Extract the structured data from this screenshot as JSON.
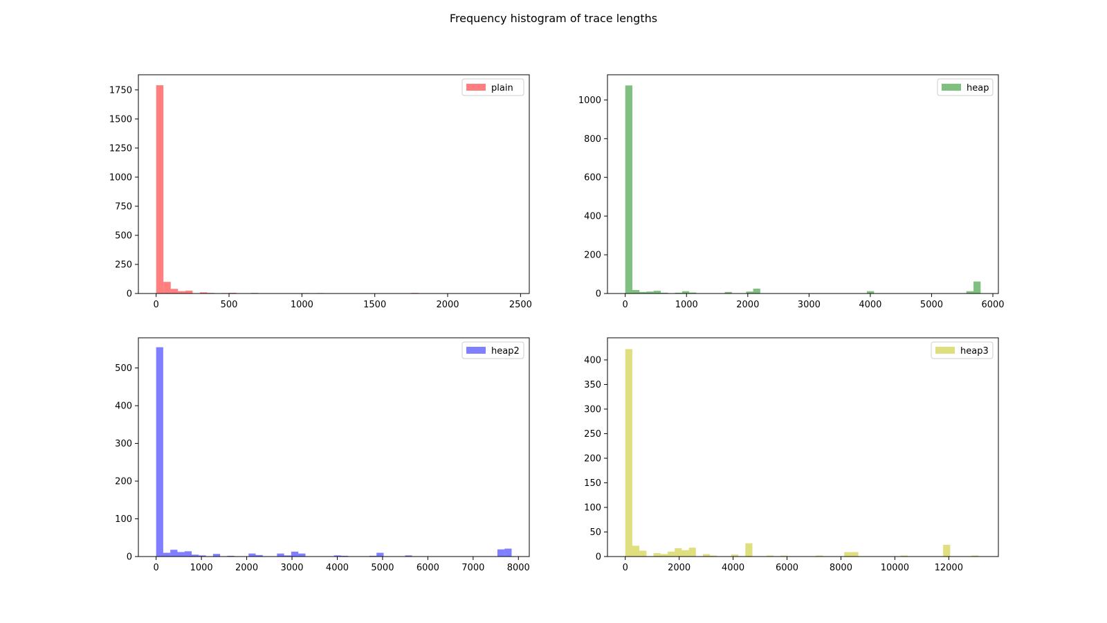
{
  "figure": {
    "title": "Frequency histogram of trace lengths"
  },
  "chart_data": [
    {
      "type": "bar",
      "subtype": "histogram",
      "legend": "plain",
      "legend_position": "top-right",
      "color": "#ff0000",
      "alpha": 0.5,
      "xlim": [
        -122,
        2560
      ],
      "ylim": [
        0,
        1880
      ],
      "xticks": [
        0,
        500,
        1000,
        1500,
        2000,
        2500
      ],
      "yticks": [
        0,
        250,
        500,
        750,
        1000,
        1250,
        1500,
        1750
      ],
      "bin_width": 50,
      "bins": [
        {
          "x": 0,
          "y": 1790
        },
        {
          "x": 50,
          "y": 100
        },
        {
          "x": 100,
          "y": 40
        },
        {
          "x": 150,
          "y": 20
        },
        {
          "x": 200,
          "y": 25
        },
        {
          "x": 300,
          "y": 10
        },
        {
          "x": 350,
          "y": 5
        },
        {
          "x": 450,
          "y": 4
        },
        {
          "x": 500,
          "y": 6
        },
        {
          "x": 650,
          "y": 5
        },
        {
          "x": 1000,
          "y": 4
        },
        {
          "x": 1100,
          "y": 4
        },
        {
          "x": 1750,
          "y": 5
        }
      ]
    },
    {
      "type": "bar",
      "subtype": "histogram",
      "legend": "heap",
      "legend_position": "top-right",
      "color": "#008000",
      "alpha": 0.5,
      "xlim": [
        -290,
        6090
      ],
      "ylim": [
        0,
        1130
      ],
      "xticks": [
        0,
        1000,
        2000,
        3000,
        4000,
        5000,
        6000
      ],
      "yticks": [
        0,
        200,
        400,
        600,
        800,
        1000
      ],
      "bin_width": 116,
      "bins": [
        {
          "x": 0,
          "y": 1075
        },
        {
          "x": 116,
          "y": 18
        },
        {
          "x": 232,
          "y": 8
        },
        {
          "x": 348,
          "y": 10
        },
        {
          "x": 464,
          "y": 14
        },
        {
          "x": 580,
          "y": 4
        },
        {
          "x": 812,
          "y": 4
        },
        {
          "x": 928,
          "y": 12
        },
        {
          "x": 1044,
          "y": 5
        },
        {
          "x": 1624,
          "y": 8
        },
        {
          "x": 1972,
          "y": 10
        },
        {
          "x": 2088,
          "y": 25
        },
        {
          "x": 3944,
          "y": 12
        },
        {
          "x": 5568,
          "y": 12
        },
        {
          "x": 5684,
          "y": 62
        }
      ]
    },
    {
      "type": "bar",
      "subtype": "histogram",
      "legend": "heap2",
      "legend_position": "top-right",
      "color": "#0000ff",
      "alpha": 0.5,
      "xlim": [
        -392,
        8240
      ],
      "ylim": [
        0,
        580
      ],
      "xticks": [
        0,
        1000,
        2000,
        3000,
        4000,
        5000,
        6000,
        7000,
        8000
      ],
      "yticks": [
        0,
        100,
        200,
        300,
        400,
        500
      ],
      "bin_width": 157,
      "bins": [
        {
          "x": 0,
          "y": 555
        },
        {
          "x": 157,
          "y": 10
        },
        {
          "x": 314,
          "y": 18
        },
        {
          "x": 471,
          "y": 12
        },
        {
          "x": 628,
          "y": 14
        },
        {
          "x": 785,
          "y": 5
        },
        {
          "x": 942,
          "y": 3
        },
        {
          "x": 1256,
          "y": 7
        },
        {
          "x": 1570,
          "y": 2
        },
        {
          "x": 2041,
          "y": 8
        },
        {
          "x": 2198,
          "y": 4
        },
        {
          "x": 2669,
          "y": 8
        },
        {
          "x": 2826,
          "y": 3
        },
        {
          "x": 2983,
          "y": 13
        },
        {
          "x": 3140,
          "y": 8
        },
        {
          "x": 3925,
          "y": 3
        },
        {
          "x": 4082,
          "y": 2
        },
        {
          "x": 4710,
          "y": 2
        },
        {
          "x": 4867,
          "y": 10
        },
        {
          "x": 5495,
          "y": 3
        },
        {
          "x": 7536,
          "y": 19
        },
        {
          "x": 7693,
          "y": 21
        }
      ]
    },
    {
      "type": "bar",
      "subtype": "histogram",
      "legend": "heap3",
      "legend_position": "top-right",
      "color": "#bfbf00",
      "alpha": 0.5,
      "xlim": [
        -660,
        13840
      ],
      "ylim": [
        0,
        445
      ],
      "xticks": [
        0,
        2000,
        4000,
        6000,
        8000,
        10000,
        12000
      ],
      "yticks": [
        0,
        50,
        100,
        150,
        200,
        250,
        300,
        350,
        400
      ],
      "bin_width": 262,
      "bins": [
        {
          "x": 0,
          "y": 422
        },
        {
          "x": 262,
          "y": 22
        },
        {
          "x": 524,
          "y": 12
        },
        {
          "x": 1048,
          "y": 7
        },
        {
          "x": 1310,
          "y": 5
        },
        {
          "x": 1572,
          "y": 10
        },
        {
          "x": 1834,
          "y": 17
        },
        {
          "x": 2096,
          "y": 13
        },
        {
          "x": 2358,
          "y": 18
        },
        {
          "x": 2882,
          "y": 5
        },
        {
          "x": 3144,
          "y": 2
        },
        {
          "x": 3930,
          "y": 4
        },
        {
          "x": 4454,
          "y": 27
        },
        {
          "x": 5240,
          "y": 2
        },
        {
          "x": 5764,
          "y": 2
        },
        {
          "x": 7074,
          "y": 2
        },
        {
          "x": 8122,
          "y": 9
        },
        {
          "x": 8384,
          "y": 9
        },
        {
          "x": 10218,
          "y": 2
        },
        {
          "x": 11790,
          "y": 24
        },
        {
          "x": 12838,
          "y": 2
        }
      ]
    }
  ]
}
